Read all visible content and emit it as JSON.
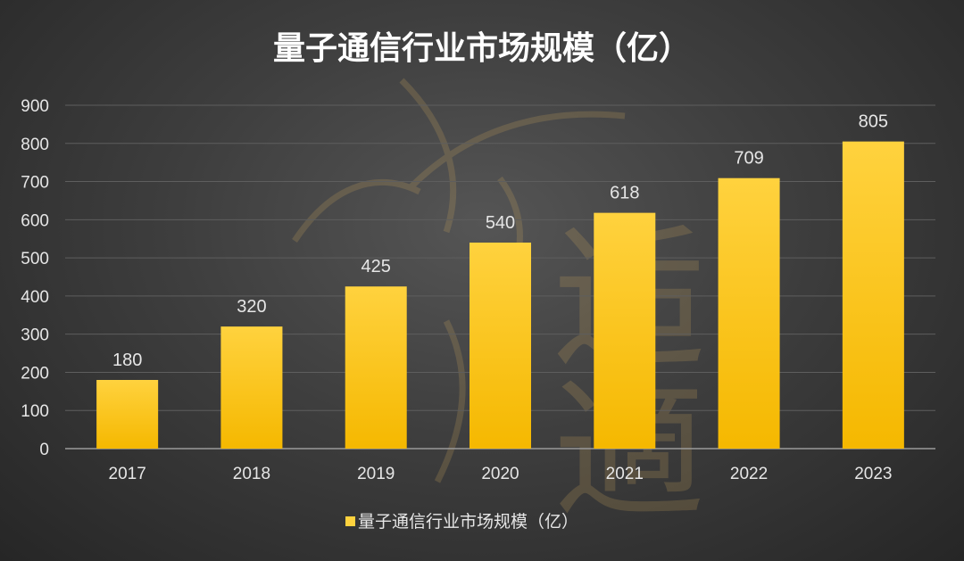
{
  "chart_data": {
    "type": "bar",
    "title": "量子通信行业市场规模（亿）",
    "categories": [
      "2017",
      "2018",
      "2019",
      "2020",
      "2021",
      "2022",
      "2023"
    ],
    "series": [
      {
        "name": "量子通信行业市场规模（亿）",
        "values": [
          180,
          320,
          425,
          540,
          618,
          709,
          805
        ]
      }
    ],
    "data_labels": [
      "180",
      "320",
      "425",
      "540",
      "618",
      "709",
      "805"
    ],
    "ylim": [
      0,
      900
    ],
    "yticks": [
      0,
      100,
      200,
      300,
      400,
      500,
      600,
      700,
      800,
      900
    ],
    "ytick_labels": [
      "0",
      "100",
      "200",
      "300",
      "400",
      "500",
      "600",
      "700",
      "800",
      "900"
    ],
    "grid": true,
    "legend_position": "bottom",
    "colors": {
      "bar_top": "#FFD23E",
      "bar_bottom": "#F5B800",
      "watermark": "#C9A45C"
    }
  },
  "watermark": {
    "char1": "逅",
    "char2": "適"
  }
}
